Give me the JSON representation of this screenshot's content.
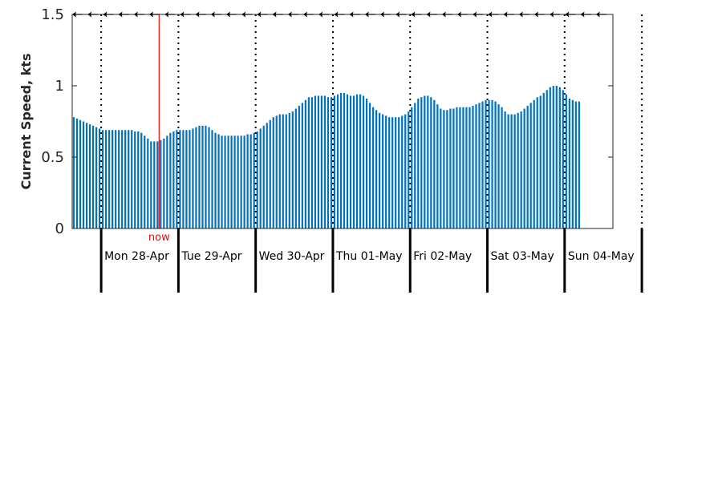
{
  "chart_data": {
    "type": "bar",
    "ylabel": "Current Speed, kts",
    "ylim": [
      0,
      1.5
    ],
    "yticks": [
      {
        "value": 0,
        "label": "0"
      },
      {
        "value": 0.5,
        "label": "0.5"
      },
      {
        "value": 1,
        "label": "1"
      },
      {
        "value": 1.5,
        "label": "1.5"
      }
    ],
    "x_range_hours": [
      -9,
      159
    ],
    "day_labels": [
      "Mon 28-Apr",
      "Tue 29-Apr",
      "Wed 30-Apr",
      "Thu 01-May",
      "Fri 02-May",
      "Sat 03-May",
      "Sun 04-May"
    ],
    "now_hour": 18,
    "now_label": "now",
    "speed_hourly": [
      0.78,
      0.77,
      0.76,
      0.75,
      0.74,
      0.73,
      0.72,
      0.71,
      0.7,
      0.69,
      0.69,
      0.69,
      0.69,
      0.69,
      0.69,
      0.69,
      0.69,
      0.69,
      0.69,
      0.68,
      0.68,
      0.67,
      0.65,
      0.63,
      0.61,
      0.61,
      0.61,
      0.62,
      0.63,
      0.65,
      0.67,
      0.68,
      0.69,
      0.69,
      0.69,
      0.69,
      0.69,
      0.7,
      0.71,
      0.72,
      0.72,
      0.72,
      0.71,
      0.69,
      0.67,
      0.66,
      0.65,
      0.65,
      0.65,
      0.65,
      0.65,
      0.65,
      0.65,
      0.65,
      0.66,
      0.66,
      0.67,
      0.68,
      0.7,
      0.72,
      0.74,
      0.76,
      0.78,
      0.79,
      0.8,
      0.8,
      0.8,
      0.81,
      0.82,
      0.84,
      0.86,
      0.88,
      0.9,
      0.92,
      0.92,
      0.93,
      0.93,
      0.93,
      0.93,
      0.92,
      0.92,
      0.93,
      0.94,
      0.95,
      0.95,
      0.94,
      0.93,
      0.93,
      0.94,
      0.94,
      0.93,
      0.91,
      0.88,
      0.85,
      0.83,
      0.81,
      0.8,
      0.79,
      0.78,
      0.78,
      0.78,
      0.78,
      0.79,
      0.8,
      0.82,
      0.85,
      0.88,
      0.91,
      0.92,
      0.93,
      0.93,
      0.92,
      0.9,
      0.87,
      0.84,
      0.83,
      0.83,
      0.84,
      0.84,
      0.85,
      0.85,
      0.85,
      0.85,
      0.85,
      0.86,
      0.87,
      0.88,
      0.89,
      0.9,
      0.9,
      0.9,
      0.89,
      0.87,
      0.85,
      0.82,
      0.8,
      0.8,
      0.8,
      0.81,
      0.82,
      0.84,
      0.86,
      0.88,
      0.9,
      0.92,
      0.93,
      0.95,
      0.97,
      0.99,
      1.0,
      1.0,
      0.99,
      0.97,
      0.94,
      0.91,
      0.9,
      0.89,
      0.89
    ],
    "direction": "westward (arrows pointing left) throughout",
    "colors": {
      "bars": "#0072BD",
      "now_line": "#ff0000",
      "axes": "#262626",
      "day_lines": "#000000"
    }
  }
}
